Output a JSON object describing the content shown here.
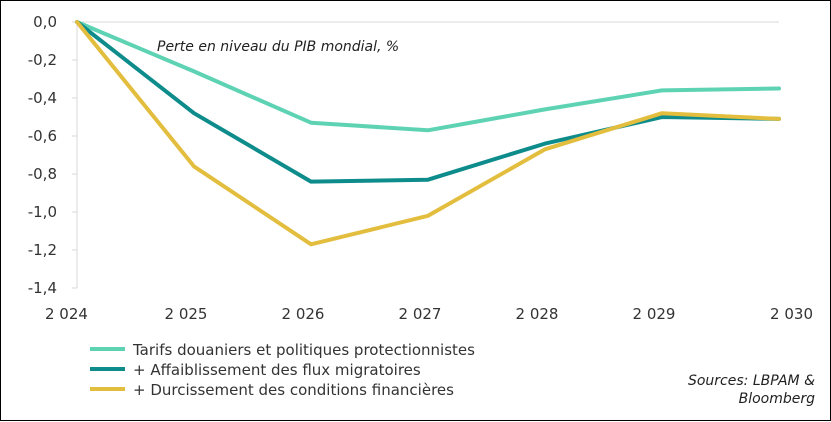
{
  "chart_data": {
    "type": "line",
    "subtitle": "Perte en niveau du PIB  mondial, %",
    "categories": [
      "2 024",
      "2 025",
      "2 026",
      "2 027",
      "2 028",
      "2 029",
      "2 030"
    ],
    "ylim": [
      -1.4,
      0.0
    ],
    "yticks": [
      {
        "value": 0.0,
        "label": "0,0"
      },
      {
        "value": -0.2,
        "label": "-0,2"
      },
      {
        "value": -0.4,
        "label": "-0,4"
      },
      {
        "value": -0.6,
        "label": "-0,6"
      },
      {
        "value": -0.8,
        "label": "-0,8"
      },
      {
        "value": -1.0,
        "label": "-1,0"
      },
      {
        "value": -1.2,
        "label": "-1,2"
      },
      {
        "value": -1.4,
        "label": "-1,4"
      }
    ],
    "grid": false,
    "legend_position": "bottom-left",
    "series": [
      {
        "name": "Tarifs douaniers et politiques protectionnistes",
        "color": "#5ED3B4",
        "values": [
          0.0,
          -0.26,
          -0.53,
          -0.57,
          -0.46,
          -0.36,
          -0.35
        ]
      },
      {
        "name": "+ Affaiblissement des flux migratoires",
        "color": "#0E8C8C",
        "values": [
          0.0,
          -0.48,
          -0.84,
          -0.83,
          -0.64,
          -0.5,
          -0.51
        ]
      },
      {
        "name": "+ Durcissement des conditions financières",
        "color": "#E3BE3E",
        "values": [
          0.0,
          -0.76,
          -1.17,
          -1.02,
          -0.67,
          -0.48,
          -0.51
        ]
      }
    ],
    "source_lines": [
      "Sources: LBPAM &",
      "Bloomberg"
    ]
  }
}
